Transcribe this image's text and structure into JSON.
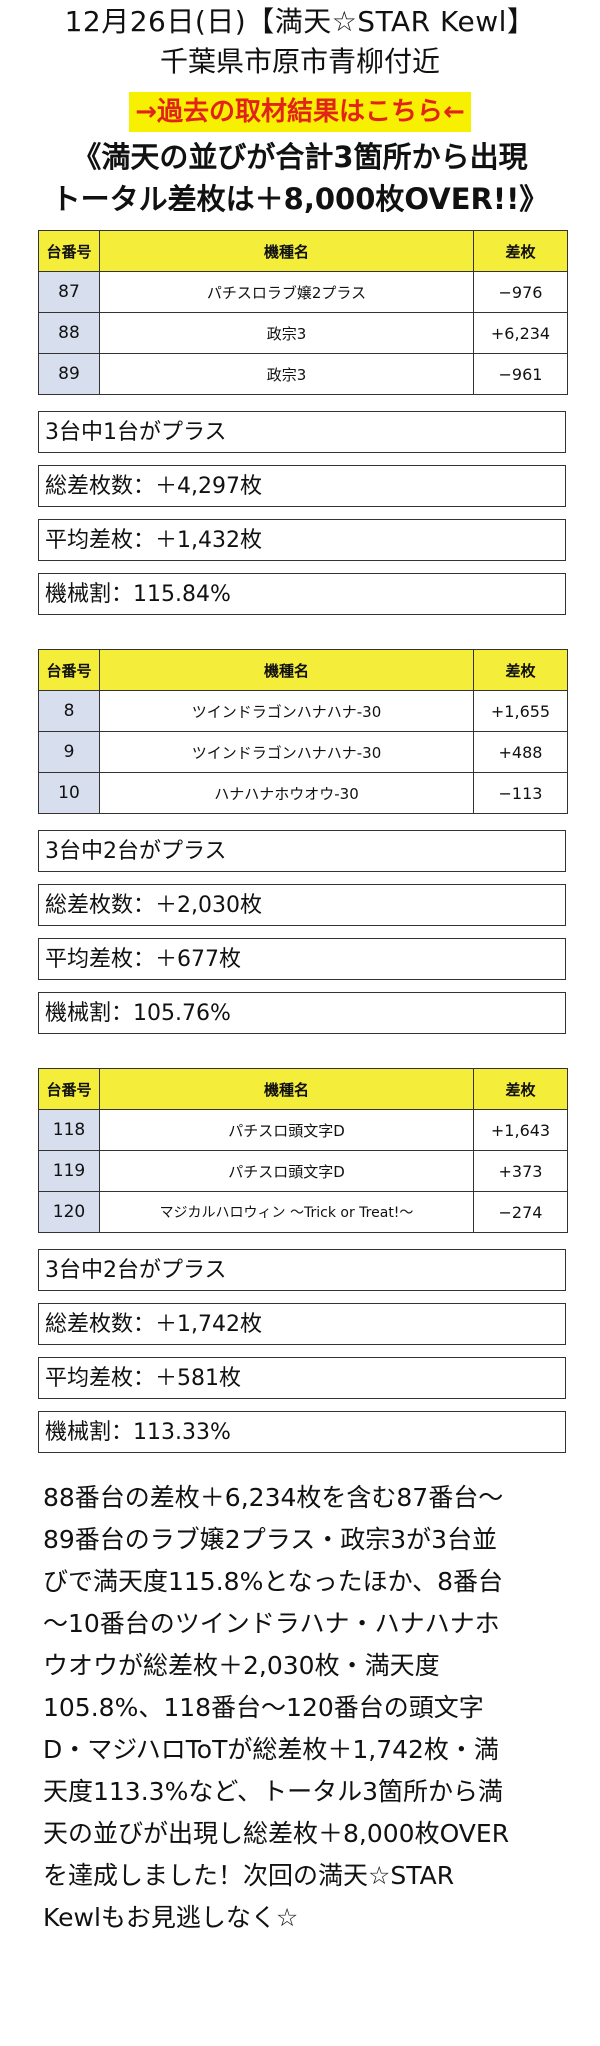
{
  "header": {
    "line1": "12月26日(日)【満天☆STAR Kewl】",
    "line2": "千葉県市原市青柳付近",
    "link_label": "→過去の取材結果はこちら←",
    "headline_line1": "《満天の並びが合計3箇所から出現",
    "headline_line2": "トータル差枚は＋8,000枚OVER!!》"
  },
  "columns": [
    "台番号",
    "機種名",
    "差枚"
  ],
  "groups": [
    {
      "rows": [
        {
          "num": "87",
          "name": "パチスロラブ嬢2プラス",
          "diff": "−976"
        },
        {
          "num": "88",
          "name": "政宗3",
          "diff": "+6,234"
        },
        {
          "num": "89",
          "name": "政宗3",
          "diff": "−961"
        }
      ],
      "stats": {
        "plus_count": "3台中1台がプラス",
        "total": "総差枚数：＋4,297枚",
        "average": "平均差枚：＋1,432枚",
        "payout": "機械割：115.84%"
      }
    },
    {
      "rows": [
        {
          "num": "8",
          "name": "ツインドラゴンハナハナ-30",
          "diff": "+1,655"
        },
        {
          "num": "9",
          "name": "ツインドラゴンハナハナ-30",
          "diff": "+488"
        },
        {
          "num": "10",
          "name": "ハナハナホウオウ-30",
          "diff": "−113"
        }
      ],
      "stats": {
        "plus_count": "3台中2台がプラス",
        "total": "総差枚数：＋2,030枚",
        "average": "平均差枚：＋677枚",
        "payout": "機械割：105.76%"
      }
    },
    {
      "rows": [
        {
          "num": "118",
          "name": "パチスロ頭文字D",
          "diff": "+1,643"
        },
        {
          "num": "119",
          "name": "パチスロ頭文字D",
          "diff": "+373"
        },
        {
          "num": "120",
          "name": "マジカルハロウィン 〜Trick or Treat!〜",
          "diff": "−274"
        }
      ],
      "stats": {
        "plus_count": "3台中2台がプラス",
        "total": "総差枚数：＋1,742枚",
        "average": "平均差枚：＋581枚",
        "payout": "機械割：113.33%"
      }
    }
  ],
  "summary": {
    "lines": [
      "88番台の差枚＋6,234枚を含む87番台〜",
      "89番台のラブ嬢2プラス・政宗3が3台並",
      "びで満天度115.8%となったほか、8番台",
      "〜10番台のツインドラハナ・ハナハナホ",
      "ウオウが総差枚＋2,030枚・満天度",
      "105.8%、118番台〜120番台の頭文字",
      "D・マジハロToTが総差枚＋1,742枚・満",
      "天度113.3%など、トータル3箇所から満",
      "天の並びが出現し総差枚＋8,000枚OVER",
      "を達成しました！次回の満天☆STAR",
      "Kewlもお見逃しなく☆"
    ]
  }
}
